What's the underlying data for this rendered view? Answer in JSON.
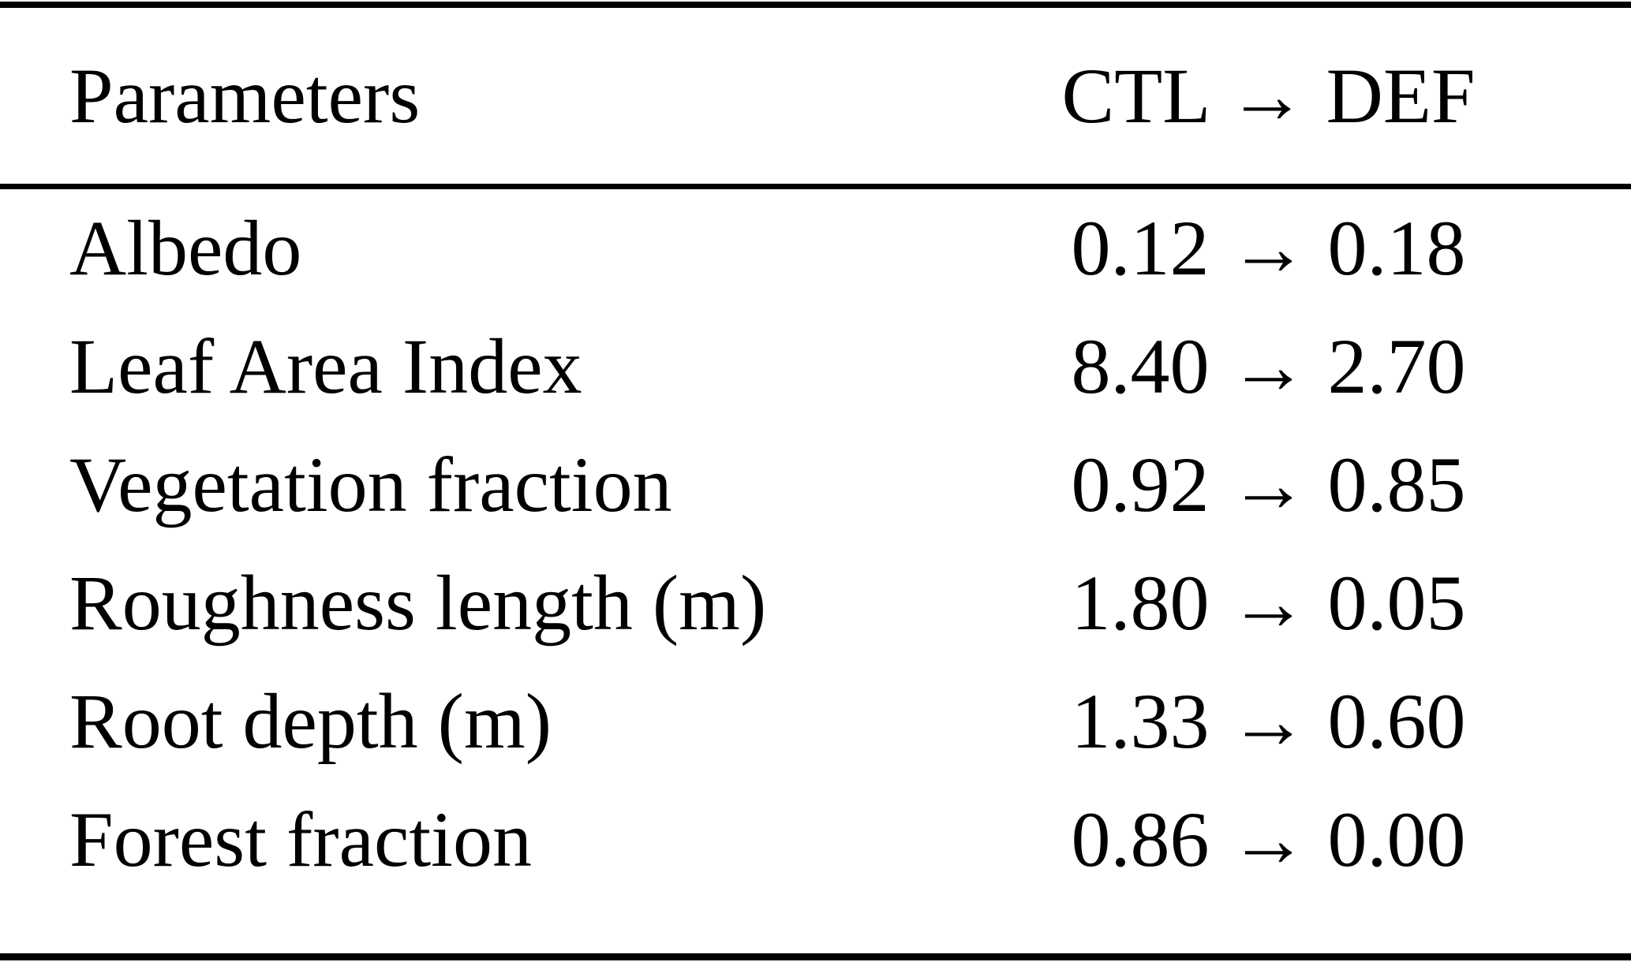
{
  "page": {
    "background_color": "#ffffff",
    "text_color": "#000000",
    "rule_color": "#000000"
  },
  "table": {
    "header": {
      "parameter": "Parameters",
      "change": "CTL → DEF"
    },
    "rows": [
      {
        "parameter": "Albedo",
        "ctl": "0.12",
        "def": "0.18",
        "change": "0.12 → 0.18"
      },
      {
        "parameter": "Leaf Area Index",
        "ctl": "8.40",
        "def": "2.70",
        "change": "8.40 → 2.70"
      },
      {
        "parameter": "Vegetation fraction",
        "ctl": "0.92",
        "def": "0.85",
        "change": "0.92 → 0.85"
      },
      {
        "parameter": "Roughness length (m)",
        "ctl": "1.80",
        "def": "0.05",
        "change": "1.80 → 0.05"
      },
      {
        "parameter": "Root depth (m)",
        "ctl": "1.33",
        "def": "0.60",
        "change": "1.33 → 0.60"
      },
      {
        "parameter": "Forest fraction",
        "ctl": "0.86",
        "def": "0.00",
        "change": "0.86 → 0.00"
      }
    ]
  },
  "chart_data": {
    "type": "table",
    "title": "",
    "columns": [
      "Parameters",
      "CTL → DEF"
    ],
    "categories": [
      "Albedo",
      "Leaf Area Index",
      "Vegetation fraction",
      "Roughness length (m)",
      "Root depth (m)",
      "Forest fraction"
    ],
    "series": [
      {
        "name": "CTL",
        "values": [
          0.12,
          8.4,
          0.92,
          1.8,
          1.33,
          0.86
        ]
      },
      {
        "name": "DEF",
        "values": [
          0.18,
          2.7,
          0.85,
          0.05,
          0.6,
          0.0
        ]
      }
    ],
    "rows": [
      [
        "Albedo",
        "0.12 → 0.18"
      ],
      [
        "Leaf Area Index",
        "8.40 → 2.70"
      ],
      [
        "Vegetation fraction",
        "0.92 → 0.85"
      ],
      [
        "Roughness length (m)",
        "1.80 → 0.05"
      ],
      [
        "Root depth (m)",
        "1.33 → 0.60"
      ],
      [
        "Forest fraction",
        "0.86 → 0.00"
      ]
    ]
  }
}
